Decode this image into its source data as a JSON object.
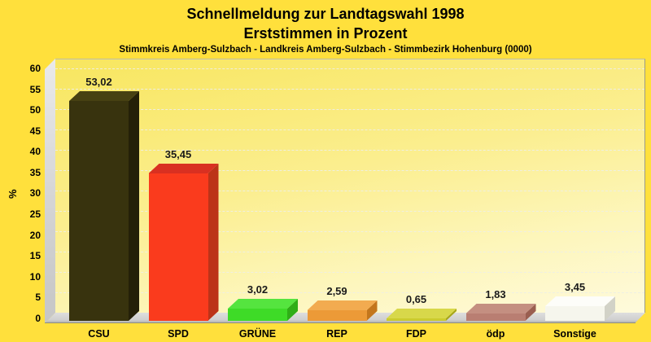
{
  "titles": {
    "line1": "Schnellmeldung zur Landtagswahl 1998",
    "line2": "Erststimmen in Prozent",
    "subtitle": "Stimmkreis Amberg-Sulzbach - Landkreis Amberg-Sulzbach - Stimmbezirk Hohenburg (0000)"
  },
  "y_axis": {
    "label": "%",
    "tick_values": [
      0,
      5,
      10,
      15,
      20,
      25,
      30,
      35,
      40,
      45,
      50,
      55,
      60
    ],
    "tick_labels": [
      "0",
      "5",
      "10",
      "15",
      "20",
      "25",
      "30",
      "35",
      "40",
      "45",
      "50",
      "55",
      "60"
    ]
  },
  "chart_data": {
    "type": "bar",
    "style": "3d-column",
    "title": "Schnellmeldung zur Landtagswahl 1998",
    "subtitle": "Erststimmen in Prozent",
    "region_line": "Stimmkreis Amberg-Sulzbach - Landkreis Amberg-Sulzbach - Stimmbezirk Hohenburg (0000)",
    "xlabel": "",
    "ylabel": "%",
    "ylim": [
      0,
      60
    ],
    "ytick_step": 5,
    "grid": true,
    "legend": false,
    "categories": [
      "CSU",
      "SPD",
      "GRÜNE",
      "REP",
      "FDP",
      "ödp",
      "Sonstige"
    ],
    "values": [
      53.02,
      35.45,
      3.02,
      2.59,
      0.65,
      1.83,
      3.45
    ],
    "value_labels": [
      "53,02",
      "35,45",
      "3,02",
      "2,59",
      "0,65",
      "1,83",
      "3,45"
    ],
    "bar_colors": [
      {
        "front": "#38330E",
        "top": "#474112",
        "side": "#242008"
      },
      {
        "front": "#FA3B1D",
        "top": "#D93021",
        "side": "#BC3318"
      },
      {
        "front": "#3EDB27",
        "top": "#55E43F",
        "side": "#2FAE17"
      },
      {
        "front": "#EC9A37",
        "top": "#F2AB50",
        "side": "#C3761C"
      },
      {
        "front": "#CBCB2E",
        "top": "#D8D84A",
        "side": "#A6A619"
      },
      {
        "front": "#B97E72",
        "top": "#C48F81",
        "side": "#9A5E50"
      },
      {
        "front": "#F6F6ED",
        "top": "#FDFDF9",
        "side": "#D2D2C7"
      }
    ]
  },
  "page_colors": {
    "background": "#FFE03C",
    "plot_gradient_start": "#F8E65F",
    "plot_gradient_end": "#FEFADC",
    "wall": "#D2D2D2",
    "gridline": "#EEEEE4",
    "text": "#000000"
  }
}
